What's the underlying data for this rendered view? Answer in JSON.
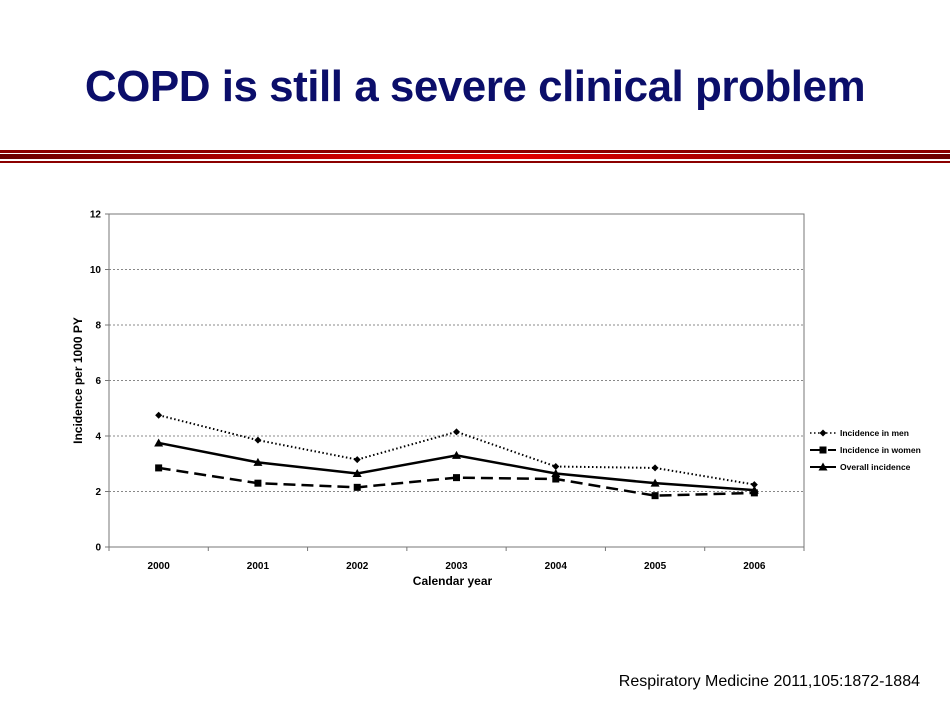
{
  "slide": {
    "title": "COPD is still a severe clinical problem",
    "citation": "Respiratory Medicine  2011,105:1872-1884"
  },
  "colors": {
    "title": "#0b0e6a",
    "rule_dark": "#8b0000",
    "rule_bright": "#e00000",
    "series": "#000000",
    "grid": "#888888"
  },
  "chart_data": {
    "type": "line",
    "title": "",
    "xlabel": "Calendar year",
    "ylabel": "Incidence per 1000 PY",
    "categories": [
      "2000",
      "2001",
      "2002",
      "2003",
      "2004",
      "2005",
      "2006"
    ],
    "ylim": [
      0,
      12
    ],
    "yticks": [
      0,
      2,
      4,
      6,
      8,
      10,
      12
    ],
    "grid": true,
    "legend_position": "right",
    "series": [
      {
        "name": "Incidence in men",
        "style": "dotted",
        "marker": "diamond",
        "values": [
          4.75,
          3.85,
          3.15,
          4.15,
          2.9,
          2.85,
          2.25
        ]
      },
      {
        "name": "Incidence in women",
        "style": "dashed",
        "marker": "square",
        "values": [
          2.85,
          2.3,
          2.15,
          2.5,
          2.45,
          1.85,
          1.95
        ]
      },
      {
        "name": "Overall incidence",
        "style": "solid",
        "marker": "triangle",
        "values": [
          3.75,
          3.05,
          2.65,
          3.3,
          2.65,
          2.3,
          2.05
        ]
      }
    ]
  }
}
